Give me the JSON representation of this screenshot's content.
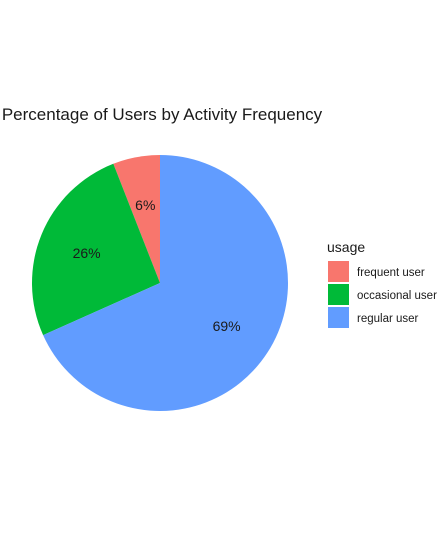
{
  "chart_data": {
    "type": "pie",
    "title": "Percentage of Users by Activity Frequency",
    "legend_title": "usage",
    "legend_position": "right",
    "slices": [
      {
        "category": "frequent user",
        "percent": 6,
        "label": "6%",
        "color": "#F8766D"
      },
      {
        "category": "occasional user",
        "percent": 26,
        "label": "26%",
        "color": "#00BA38"
      },
      {
        "category": "regular user",
        "percent": 69,
        "label": "69%",
        "color": "#619CFF"
      }
    ],
    "start_direction": "top",
    "rotation": "counterclockwise",
    "background_color": "#FFFFFF",
    "grid": false
  }
}
